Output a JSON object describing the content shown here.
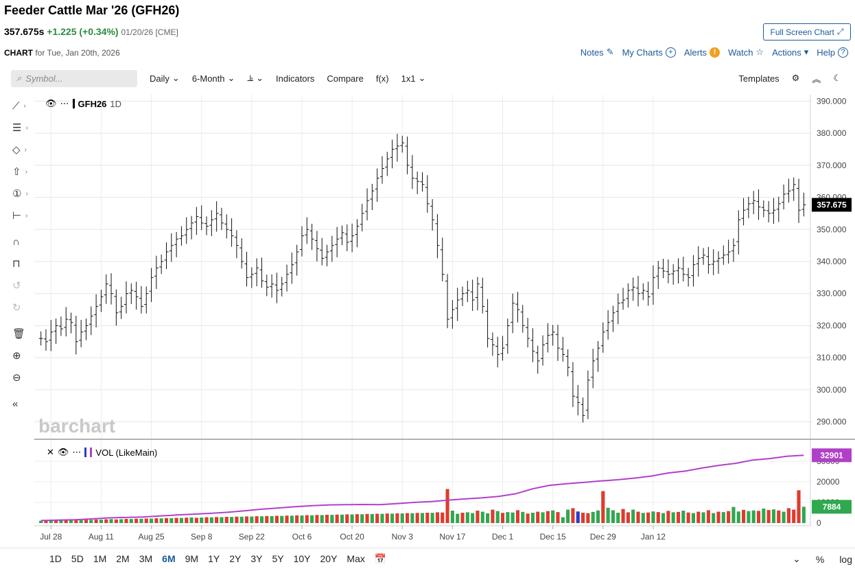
{
  "header": {
    "title": "Feeder Cattle Mar '26 (GFH26)",
    "last": "357.675s",
    "change": "+1.225 (+0.34%)",
    "date_exchange": "01/20/26 [CME]",
    "fullscreen_label": "Full Screen Chart",
    "chart_label": "CHART",
    "chart_for": "for Tue, Jan 20th, 2026"
  },
  "actions": {
    "notes": "Notes",
    "my_charts": "My Charts",
    "alerts": "Alerts",
    "watch": "Watch",
    "actions": "Actions",
    "help": "Help"
  },
  "toolbar": {
    "symbol_placeholder": "Symbol...",
    "interval": "Daily",
    "range": "6-Month",
    "indicators": "Indicators",
    "compare": "Compare",
    "fx": "f(x)",
    "layout": "1x1",
    "templates": "Templates"
  },
  "legend": {
    "main": "GFH26",
    "main_interval": "1D",
    "vol": "VOL (LikeMain)"
  },
  "watermark": "barchart",
  "price_tag": "357.675",
  "vol_tag": "32901",
  "vol_bar_tag": "7884",
  "ranges": [
    "1D",
    "5D",
    "1M",
    "2M",
    "3M",
    "6M",
    "9M",
    "1Y",
    "2Y",
    "3Y",
    "5Y",
    "10Y",
    "20Y",
    "Max"
  ],
  "active_range": "6M",
  "bottom_right": {
    "percent": "%",
    "log": "log"
  },
  "colors": {
    "link": "#1a5a9a",
    "up": "#2a8a3e",
    "vol_up": "#2fa84f",
    "vol_down": "#e03a2e",
    "vol_avg": "#b040c8",
    "price_tag_bg": "#000000"
  },
  "chart_data": {
    "type": "ohlc",
    "price_axis": {
      "ticks": [
        290,
        300,
        310,
        320,
        330,
        340,
        350,
        360,
        370,
        380,
        390
      ],
      "ylim": [
        285,
        392
      ],
      "tick_format": "0.000"
    },
    "x_labels": [
      "Jul 28",
      "Aug 11",
      "Aug 25",
      "Sep 8",
      "Sep 22",
      "Oct 6",
      "Oct 20",
      "Nov 3",
      "Nov 17",
      "Dec 1",
      "Dec 15",
      "Dec 29",
      "Jan 12"
    ],
    "volume_axis": {
      "ticks": [
        0,
        10000,
        20000,
        30000
      ],
      "ylim": [
        0,
        36000
      ]
    },
    "close": [
      316,
      315,
      318,
      320,
      319,
      322,
      321,
      315,
      318,
      320,
      323,
      326,
      329,
      333,
      330,
      324,
      326,
      330,
      331,
      329,
      326,
      330,
      335,
      338,
      340,
      343,
      345,
      347,
      348,
      350,
      352,
      354,
      352,
      351,
      353,
      355,
      352,
      350,
      348,
      345,
      340,
      335,
      336,
      338,
      334,
      332,
      333,
      331,
      333,
      336,
      339,
      343,
      348,
      350,
      347,
      344,
      341,
      343,
      345,
      347,
      349,
      346,
      348,
      351,
      355,
      359,
      362,
      366,
      369,
      372,
      375,
      376,
      377,
      370,
      366,
      365,
      364,
      358,
      353,
      345,
      336,
      322,
      325,
      328,
      330,
      331,
      328,
      333,
      326,
      316,
      314,
      311,
      313,
      320,
      327,
      325,
      320,
      316,
      312,
      309,
      314,
      317,
      318,
      313,
      311,
      307,
      298,
      296,
      292,
      303,
      309,
      313,
      318,
      321,
      324,
      327,
      328,
      331,
      332,
      330,
      331,
      329,
      335,
      338,
      337,
      336,
      337,
      338,
      336,
      335,
      339,
      341,
      342,
      339,
      340,
      341,
      342,
      343,
      345,
      353,
      356,
      358,
      359,
      357,
      356,
      355,
      356,
      358,
      361,
      362,
      364,
      356,
      357.675
    ],
    "volume": [
      1100,
      1200,
      1150,
      1300,
      1250,
      1400,
      1500,
      1350,
      1450,
      1600,
      1550,
      1700,
      1650,
      1800,
      1900,
      1750,
      1850,
      2000,
      1950,
      2100,
      2050,
      2200,
      2150,
      2300,
      2250,
      2400,
      2350,
      2500,
      2450,
      2600,
      2700,
      2550,
      2650,
      2800,
      2750,
      2900,
      2850,
      3000,
      2950,
      3100,
      3050,
      3200,
      3150,
      3300,
      3250,
      3400,
      3350,
      3500,
      3450,
      3600,
      3550,
      3700,
      3650,
      3800,
      3750,
      3900,
      3850,
      4000,
      3950,
      4100,
      4050,
      4200,
      4150,
      4300,
      4250,
      4400,
      4350,
      4500,
      4450,
      4600,
      4550,
      4700,
      4650,
      4800,
      4750,
      4900,
      4850,
      5000,
      4950,
      5200,
      5100,
      16500,
      6000,
      4500,
      5000,
      5200,
      4800,
      6000,
      5500,
      4700,
      6500,
      5800,
      4900,
      5300,
      5100,
      6200,
      5400,
      4600,
      5000,
      5500,
      5200,
      5800,
      6100,
      5300,
      2800,
      6500,
      7200,
      5600,
      5000,
      4800,
      5400,
      6100,
      15500,
      7400,
      6200,
      5000,
      6800,
      5200,
      6500,
      5500,
      4900,
      5100,
      5600,
      5300,
      4800,
      5900,
      5200,
      5400,
      6000,
      5100,
      4800,
      5500,
      5200,
      6200,
      4800,
      5500,
      5300,
      5800,
      7800,
      5600,
      6400,
      5800,
      6100,
      5900,
      7000,
      6300,
      6600,
      6100,
      5500,
      7200,
      6500,
      15900,
      7884
    ],
    "volume_up_down": [
      "u",
      "d",
      "u",
      "d",
      "u",
      "d",
      "u",
      "d",
      "u",
      "d",
      "u",
      "d",
      "u",
      "d",
      "u",
      "d",
      "u",
      "d",
      "u",
      "d",
      "u",
      "d",
      "u",
      "d",
      "u",
      "d",
      "u",
      "d",
      "u",
      "d",
      "u",
      "d",
      "u",
      "d",
      "u",
      "d",
      "u",
      "d",
      "u",
      "d",
      "u",
      "d",
      "u",
      "d",
      "u",
      "d",
      "u",
      "d",
      "u",
      "d",
      "u",
      "d",
      "u",
      "d",
      "u",
      "d",
      "u",
      "d",
      "u",
      "d",
      "u",
      "d",
      "u",
      "d",
      "u",
      "d",
      "u",
      "d",
      "u",
      "d",
      "u",
      "d",
      "u",
      "d",
      "u",
      "d",
      "u",
      "d",
      "u",
      "d",
      "d",
      "d",
      "u",
      "u",
      "d",
      "u",
      "u",
      "d",
      "u",
      "u",
      "d",
      "u",
      "d",
      "u",
      "u",
      "d",
      "u",
      "d",
      "u",
      "d",
      "u",
      "d",
      "u",
      "d",
      "u",
      "u",
      "d",
      "b",
      "d",
      "d",
      "u",
      "u",
      "d",
      "u",
      "u",
      "u",
      "d",
      "d",
      "u",
      "d",
      "u",
      "d",
      "u",
      "d",
      "u",
      "d",
      "u",
      "d",
      "u",
      "d",
      "u",
      "d",
      "u",
      "d",
      "u",
      "d",
      "u",
      "d",
      "u",
      "u",
      "d",
      "u",
      "u",
      "d",
      "u",
      "d",
      "u",
      "d",
      "u",
      "d",
      "d",
      "d",
      "u"
    ],
    "volume_avg": [
      1200,
      1400,
      1600,
      2000,
      2500,
      2700,
      2900,
      3400,
      3900,
      4300,
      4700,
      5200,
      5900,
      6700,
      7300,
      7900,
      8400,
      8800,
      8900,
      9000,
      8900,
      9400,
      10000,
      10400,
      11100,
      11700,
      12200,
      12900,
      14200,
      16600,
      18300,
      19100,
      19700,
      20400,
      21000,
      21800,
      22800,
      24300,
      25200,
      26700,
      28000,
      29000,
      30600,
      31300,
      32400,
      32900
    ]
  }
}
